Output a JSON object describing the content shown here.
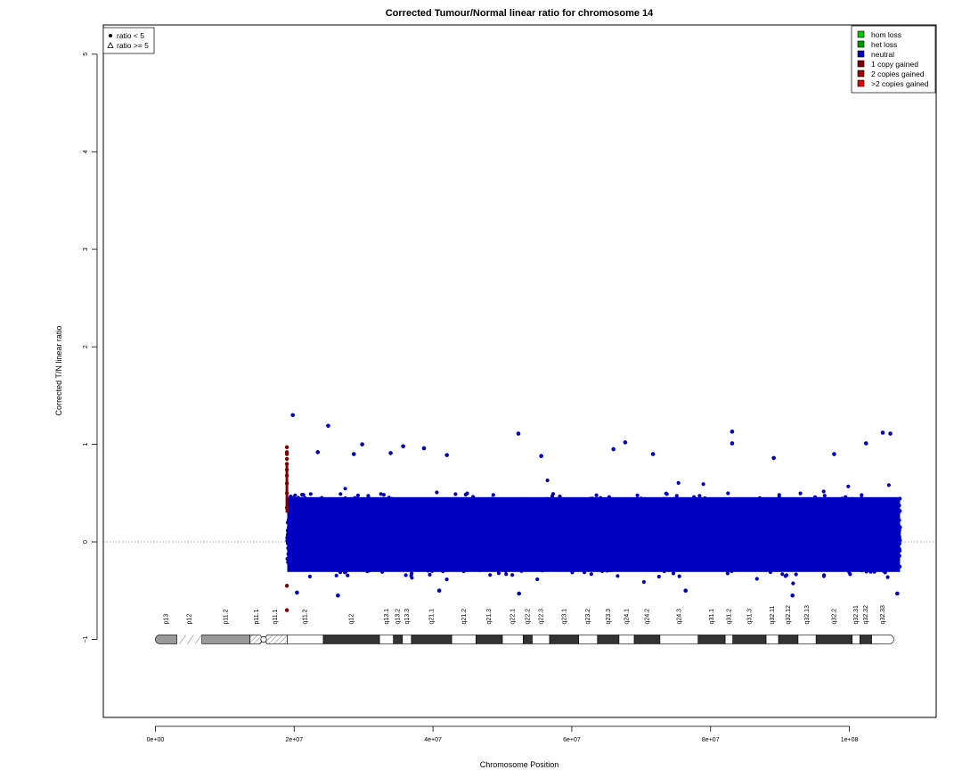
{
  "chart_data": {
    "type": "scatter",
    "title": "Corrected Tumour/Normal linear ratio for chromosome  14",
    "xlabel": "Chromosome Position",
    "ylabel": "Corrected T/N linear ratio",
    "xlim": [
      -7500000,
      112500000
    ],
    "ylim": [
      -1.8,
      5.3
    ],
    "x_ticks": [
      {
        "value": 0,
        "label": "0e+00"
      },
      {
        "value": 20000000,
        "label": "2e+07"
      },
      {
        "value": 40000000,
        "label": "4e+07"
      },
      {
        "value": 60000000,
        "label": "6e+07"
      },
      {
        "value": 80000000,
        "label": "8e+07"
      },
      {
        "value": 100000000,
        "label": "1e+08"
      }
    ],
    "y_ticks": [
      {
        "value": -1,
        "label": "−1"
      },
      {
        "value": 0,
        "label": "0"
      },
      {
        "value": 1,
        "label": "1"
      },
      {
        "value": 2,
        "label": "2"
      },
      {
        "value": 3,
        "label": "3"
      },
      {
        "value": 4,
        "label": "4"
      },
      {
        "value": 5,
        "label": "5"
      }
    ],
    "reference_line": {
      "y": 0,
      "style": "dotted",
      "color": "#888888"
    },
    "data_extent": {
      "x_start": 19000000,
      "x_end": 107300000
    },
    "bulk_band": {
      "y_min": -0.4,
      "y_max": 0.55
    },
    "series": [
      {
        "category": "neutral",
        "color": "#0000c0",
        "outliers": [
          {
            "x": 19800000,
            "y": 1.3
          },
          {
            "x": 24900000,
            "y": 1.19
          },
          {
            "x": 52300000,
            "y": 1.11
          },
          {
            "x": 83100000,
            "y": 1.13
          },
          {
            "x": 83100000,
            "y": 1.01
          },
          {
            "x": 104800000,
            "y": 1.12
          },
          {
            "x": 105900000,
            "y": 1.11
          },
          {
            "x": 29800000,
            "y": 1.0
          },
          {
            "x": 35700000,
            "y": 0.98
          },
          {
            "x": 38700000,
            "y": 0.96
          },
          {
            "x": 67700000,
            "y": 1.02
          },
          {
            "x": 102400000,
            "y": 1.01
          },
          {
            "x": 66000000,
            "y": 0.95
          },
          {
            "x": 23400000,
            "y": 0.92
          },
          {
            "x": 28600000,
            "y": 0.9
          },
          {
            "x": 33900000,
            "y": 0.91
          },
          {
            "x": 42000000,
            "y": 0.89
          },
          {
            "x": 55600000,
            "y": 0.88
          },
          {
            "x": 71700000,
            "y": 0.9
          },
          {
            "x": 89100000,
            "y": 0.86
          },
          {
            "x": 97800000,
            "y": 0.9
          },
          {
            "x": 20400000,
            "y": -0.52
          },
          {
            "x": 26300000,
            "y": -0.55
          },
          {
            "x": 52400000,
            "y": -0.53
          },
          {
            "x": 91800000,
            "y": -0.55
          },
          {
            "x": 106900000,
            "y": -0.53
          },
          {
            "x": 40900000,
            "y": -0.5
          },
          {
            "x": 76400000,
            "y": -0.5
          }
        ]
      },
      {
        "category": "1 copy gained",
        "color": "#800000",
        "points": [
          {
            "x": 18950000,
            "y": 0.97
          },
          {
            "x": 18950000,
            "y": 0.92
          },
          {
            "x": 18950000,
            "y": 0.9
          },
          {
            "x": 18950000,
            "y": 0.85
          },
          {
            "x": 18950000,
            "y": 0.8
          },
          {
            "x": 18950000,
            "y": 0.74
          },
          {
            "x": 18950000,
            "y": 0.68
          },
          {
            "x": 18950000,
            "y": 0.6
          },
          {
            "x": 18950000,
            "y": 0.5
          },
          {
            "x": 18950000,
            "y": 0.35
          },
          {
            "x": 18950000,
            "y": -0.45
          },
          {
            "x": 18950000,
            "y": -0.7
          }
        ]
      }
    ],
    "shape_legend": {
      "placement": "top-left",
      "items": [
        {
          "symbol": "filled-circle",
          "label": "ratio < 5"
        },
        {
          "symbol": "open-triangle",
          "label": "ratio >= 5"
        }
      ]
    },
    "color_legend": {
      "placement": "top-right",
      "items": [
        {
          "label": "hom loss",
          "color": "#00c800"
        },
        {
          "label": "het loss",
          "color": "#009900"
        },
        {
          "label": "neutral",
          "color": "#0000c0"
        },
        {
          "label": "1 copy gained",
          "color": "#800000"
        },
        {
          "label": "2 copies gained",
          "color": "#a00000"
        },
        {
          "label": ">2 copies gained",
          "color": "#e00000"
        }
      ]
    },
    "ideogram": {
      "y": -1,
      "bands": [
        {
          "name": "p13",
          "start": 0,
          "end": 3100000,
          "stain": "gvar"
        },
        {
          "name": "p12",
          "start": 3100000,
          "end": 6700000,
          "stain": "stalk"
        },
        {
          "name": "p11.2",
          "start": 6700000,
          "end": 13600000,
          "stain": "gpos50"
        },
        {
          "name": "p11.1",
          "start": 13600000,
          "end": 15600000,
          "stain": "acen"
        },
        {
          "name": "q11.1",
          "start": 15600000,
          "end": 19000000,
          "stain": "acen"
        },
        {
          "name": "q11.2",
          "start": 19000000,
          "end": 24200000,
          "stain": "gneg"
        },
        {
          "name": "q12",
          "start": 24200000,
          "end": 32300000,
          "stain": "gpos100"
        },
        {
          "name": "q13.1",
          "start": 32300000,
          "end": 34300000,
          "stain": "gneg"
        },
        {
          "name": "q13.2",
          "start": 34300000,
          "end": 35600000,
          "stain": "gpos100"
        },
        {
          "name": "q13.3",
          "start": 35600000,
          "end": 36900000,
          "stain": "gneg"
        },
        {
          "name": "q21.1",
          "start": 36900000,
          "end": 42700000,
          "stain": "gpos100"
        },
        {
          "name": "q21.2",
          "start": 42700000,
          "end": 46200000,
          "stain": "gneg"
        },
        {
          "name": "q21.3",
          "start": 46200000,
          "end": 50000000,
          "stain": "gpos100"
        },
        {
          "name": "q22.1",
          "start": 50000000,
          "end": 53000000,
          "stain": "gneg"
        },
        {
          "name": "q22.2",
          "start": 53000000,
          "end": 54300000,
          "stain": "gpos100"
        },
        {
          "name": "q22.3",
          "start": 54300000,
          "end": 56800000,
          "stain": "gneg"
        },
        {
          "name": "q23.1",
          "start": 56800000,
          "end": 61000000,
          "stain": "gpos100"
        },
        {
          "name": "q23.2",
          "start": 61000000,
          "end": 63700000,
          "stain": "gneg"
        },
        {
          "name": "q23.3",
          "start": 63700000,
          "end": 66800000,
          "stain": "gpos100"
        },
        {
          "name": "q24.1",
          "start": 66800000,
          "end": 69000000,
          "stain": "gneg"
        },
        {
          "name": "q24.2",
          "start": 69000000,
          "end": 72700000,
          "stain": "gpos100"
        },
        {
          "name": "q24.3",
          "start": 72700000,
          "end": 78200000,
          "stain": "gneg"
        },
        {
          "name": "q31.1",
          "start": 78200000,
          "end": 82100000,
          "stain": "gpos100"
        },
        {
          "name": "q31.2",
          "start": 82100000,
          "end": 83200000,
          "stain": "gneg"
        },
        {
          "name": "q31.3",
          "start": 83200000,
          "end": 88000000,
          "stain": "gpos100"
        },
        {
          "name": "q32.11",
          "start": 88000000,
          "end": 89800000,
          "stain": "gneg"
        },
        {
          "name": "q32.12",
          "start": 89800000,
          "end": 92600000,
          "stain": "gpos100"
        },
        {
          "name": "q32.13",
          "start": 92600000,
          "end": 95200000,
          "stain": "gneg"
        },
        {
          "name": "q32.2",
          "start": 95200000,
          "end": 100400000,
          "stain": "gpos100"
        },
        {
          "name": "q32.31",
          "start": 100400000,
          "end": 101500000,
          "stain": "gneg"
        },
        {
          "name": "q32.32",
          "start": 101500000,
          "end": 103200000,
          "stain": "gpos100"
        },
        {
          "name": "q32.33",
          "start": 103200000,
          "end": 106400000,
          "stain": "gneg"
        }
      ]
    }
  }
}
